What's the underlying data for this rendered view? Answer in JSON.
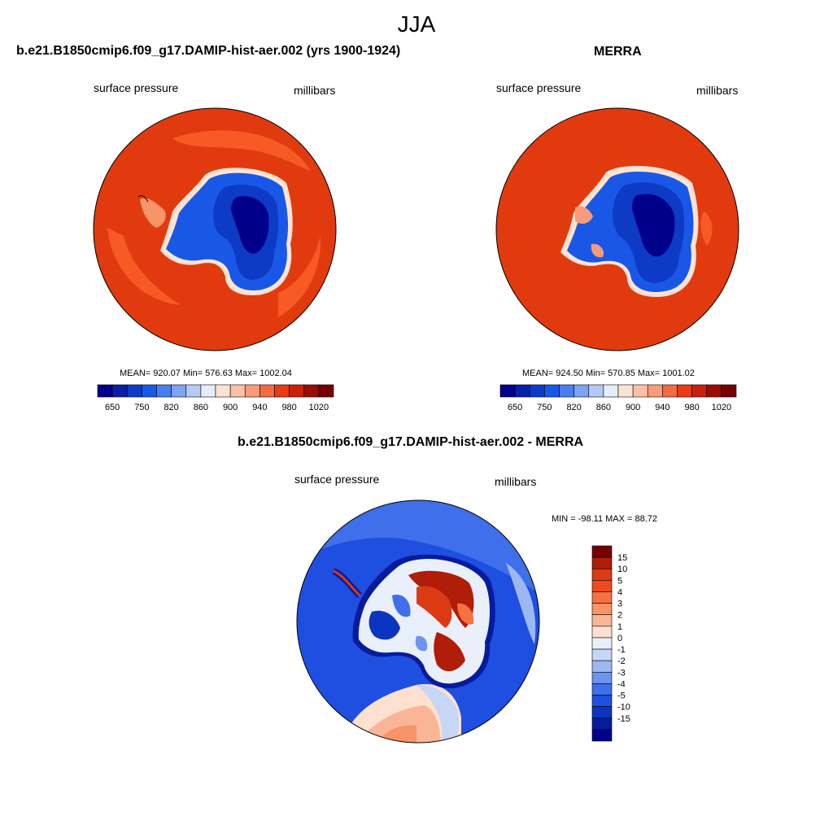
{
  "figure": {
    "title": "JJA"
  },
  "panels": [
    {
      "title": "b.e21.B1850cmip6.f09_g17.DAMIP-hist-aer.002 (yrs 1900-1924)",
      "left_label": "surface pressure",
      "right_label": "millibars",
      "stats": "MEAN= 920.07  Min= 576.63  Max= 1002.04"
    },
    {
      "title": "MERRA",
      "left_label": "surface pressure",
      "right_label": "millibars",
      "stats": "MEAN= 924.50  Min= 570.85  Max= 1001.02"
    },
    {
      "title": "b.e21.B1850cmip6.f09_g17.DAMIP-hist-aer.002 - MERRA",
      "left_label": "surface pressure",
      "right_label": "millibars",
      "stats": "MIN = -98.11 MAX =  88.72"
    }
  ],
  "colorbars": {
    "pressure": {
      "colors": [
        "#00008b",
        "#0a1fa8",
        "#0d3bc6",
        "#1958e6",
        "#4a7ef0",
        "#7fa2f2",
        "#b5c9f5",
        "#e4eefb",
        "#fde4d2",
        "#fbc1a6",
        "#f89b7a",
        "#f26b43",
        "#e83b16",
        "#c9200b",
        "#9b0c05",
        "#760000"
      ],
      "tick_labels": [
        "650",
        "750",
        "820",
        "860",
        "900",
        "940",
        "980",
        "1020"
      ]
    },
    "difference": {
      "colors": [
        "#760000",
        "#b01d08",
        "#dc3a12",
        "#f04a1d",
        "#f5713f",
        "#f79468",
        "#f9b696",
        "#fde0cf",
        "#e9f0fb",
        "#c5d6f6",
        "#9cb8f3",
        "#6d94ef",
        "#3f6fea",
        "#1f4fe0",
        "#0b34c0",
        "#071c9c",
        "#00008b"
      ],
      "tick_labels": [
        "15",
        "10",
        "5",
        "4",
        "3",
        "2",
        "1",
        "0",
        "-1",
        "-2",
        "-3",
        "-4",
        "-5",
        "-10",
        "-15"
      ]
    }
  }
}
